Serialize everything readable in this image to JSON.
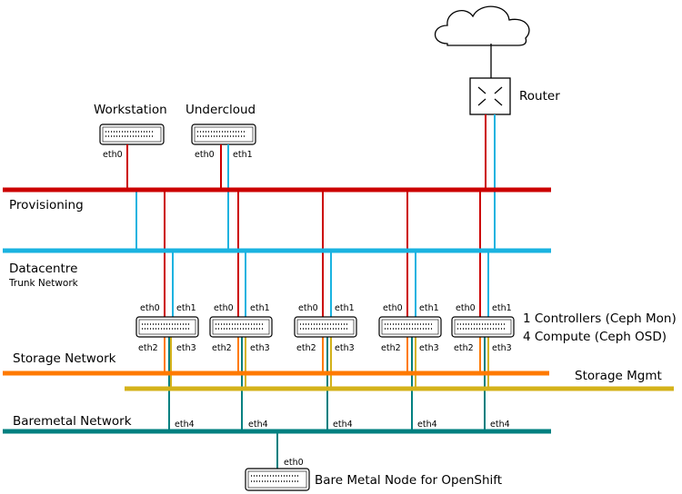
{
  "cloud_label": "",
  "router": {
    "label": "Router"
  },
  "workstation": {
    "label": "Workstation",
    "ports": [
      "eth0"
    ]
  },
  "undercloud": {
    "label": "Undercloud",
    "ports": [
      "eth0",
      "eth1"
    ]
  },
  "networks": {
    "provisioning": "Provisioning",
    "datacentre": "Datacentre",
    "datacentre_sub": "Trunk Network",
    "storage": "Storage Network",
    "storage_mgmt": "Storage Mgmt",
    "baremetal": "Baremetal Network"
  },
  "overcloud_nodes": {
    "count": 5,
    "ports_top": [
      "eth0",
      "eth1"
    ],
    "ports_bottom": [
      "eth2",
      "eth3"
    ],
    "port_baremetal": "eth4",
    "caption_line1": "1 Controllers (Ceph Mon)",
    "caption_line2": "4 Compute (Ceph OSD)"
  },
  "baremetal_node": {
    "label": "Bare Metal Node for OpenShift",
    "port": "eth0"
  },
  "colors": {
    "provisioning": "#cc0000",
    "datacentre": "#1ab3e0",
    "storage": "#ff7a00",
    "storage_mgmt": "#d4b21a",
    "baremetal": "#008080"
  }
}
